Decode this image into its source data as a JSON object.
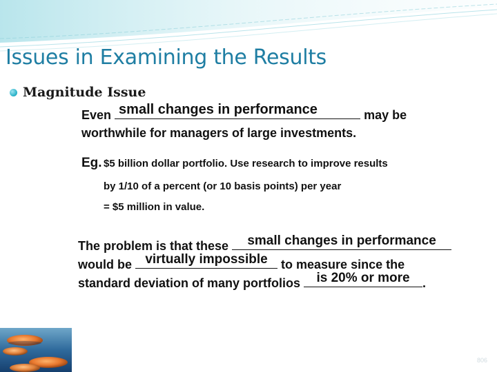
{
  "title": "Issues in Examining the Results",
  "bullet": "Magnitude Issue",
  "para1": {
    "lead": "Even",
    "blank": "small changes in performance",
    "tail": "may be",
    "line2": "worthwhile for managers of large investments."
  },
  "example": {
    "label": "Eg.",
    "line1": "$5 billion dollar portfolio. Use research to improve results",
    "line2": "by 1/10 of a percent (or 10 basis points) per year",
    "line3": "= $5 million in value."
  },
  "para2": {
    "lead": "The problem is that these",
    "blank1": "small changes in performance",
    "line2_lead": "would be",
    "blank2": "virtually impossible",
    "line2_tail": "to measure since the",
    "line3_lead": "standard deviation of many portfolios",
    "blank3": "is 20% or more",
    "line3_tail": "."
  },
  "slide_number": "806",
  "colors": {
    "title": "#1f7ea3",
    "bullet": "#2ab3c9",
    "text": "#111111"
  }
}
